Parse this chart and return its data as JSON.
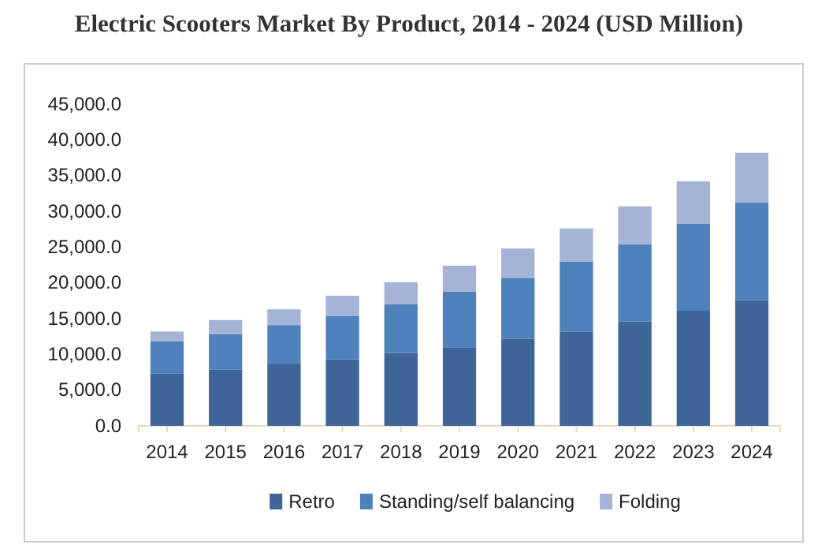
{
  "chart_data": {
    "type": "bar",
    "title": "Electric Scooters Market By Product, 2014 - 2024 (USD Million)",
    "categories": [
      "2014",
      "2015",
      "2016",
      "2017",
      "2018",
      "2019",
      "2020",
      "2021",
      "2022",
      "2023",
      "2024"
    ],
    "stacked": true,
    "series": [
      {
        "name": "Retro",
        "color": "#3e6598",
        "values": [
          7300,
          7900,
          8700,
          9300,
          10200,
          11000,
          12200,
          13200,
          14600,
          16100,
          17600
        ]
      },
      {
        "name": "Standing/self balancing",
        "color": "#4f81bd",
        "values": [
          4500,
          4900,
          5400,
          6100,
          6800,
          7800,
          8500,
          9800,
          10800,
          12200,
          13600
        ]
      },
      {
        "name": "Folding",
        "color": "#a5b4d6",
        "values": [
          1400,
          2000,
          2200,
          2800,
          3100,
          3600,
          4100,
          4600,
          5300,
          5900,
          7000
        ]
      }
    ],
    "ylim": [
      0,
      45000
    ],
    "yticks": [
      {
        "value": 0,
        "label": "0.0"
      },
      {
        "value": 5000,
        "label": "5,000.0"
      },
      {
        "value": 10000,
        "label": "10,000.0"
      },
      {
        "value": 15000,
        "label": "15,000.0"
      },
      {
        "value": 20000,
        "label": "20,000.0"
      },
      {
        "value": 25000,
        "label": "25,000.0"
      },
      {
        "value": 30000,
        "label": "30,000.0"
      },
      {
        "value": 35000,
        "label": "35,000.0"
      },
      {
        "value": 40000,
        "label": "40,000.0"
      },
      {
        "value": 45000,
        "label": "45,000.0"
      }
    ],
    "legend": "bottom"
  }
}
